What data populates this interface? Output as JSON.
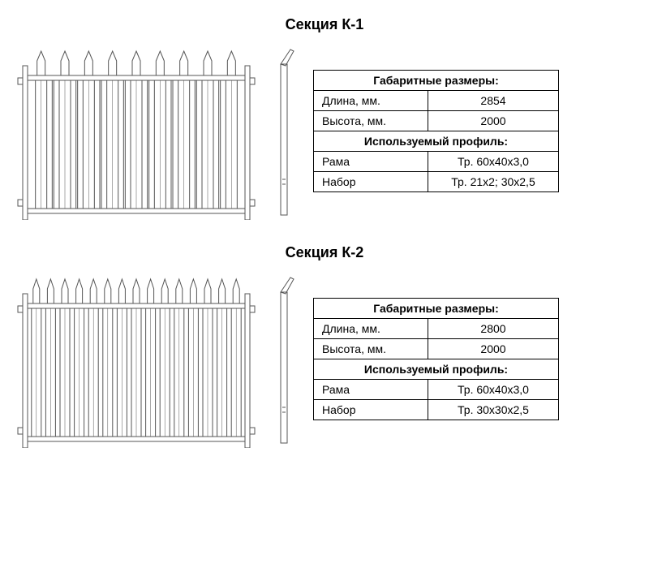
{
  "sections": [
    {
      "title": "Секция К-1",
      "dimensions_header": "Габаритные размеры:",
      "length_label": "Длина, мм.",
      "length_value": "2854",
      "height_label": "Высота, мм.",
      "height_value": "2000",
      "profile_header": "Используемый профиль:",
      "frame_label": "Рама",
      "frame_value": "Тр. 60х40х3,0",
      "set_label": "Набор",
      "set_value": "Тр. 21х2; 30х2,5",
      "picket_count": 9,
      "thin_picket_count": 8,
      "picket_width": 14,
      "thin_picket_width": 2,
      "stroke_color": "#555555",
      "fill_color": "#ffffff",
      "fence_width": 280,
      "fence_height": 220
    },
    {
      "title": "Секция К-2",
      "dimensions_header": "Габаритные размеры:",
      "length_label": "Длина, мм.",
      "length_value": "2800",
      "height_label": "Высота, мм.",
      "height_value": "2000",
      "profile_header": "Используемый профиль:",
      "frame_label": "Рама",
      "frame_value": "Тр. 60х40х3,0",
      "set_label": "Набор",
      "set_value": "Тр. 30х30х2,5",
      "picket_count": 15,
      "thin_picket_count": 0,
      "picket_width": 12,
      "thin_picket_width": 0,
      "stroke_color": "#555555",
      "fill_color": "#ffffff",
      "fence_width": 280,
      "fence_height": 220
    }
  ]
}
